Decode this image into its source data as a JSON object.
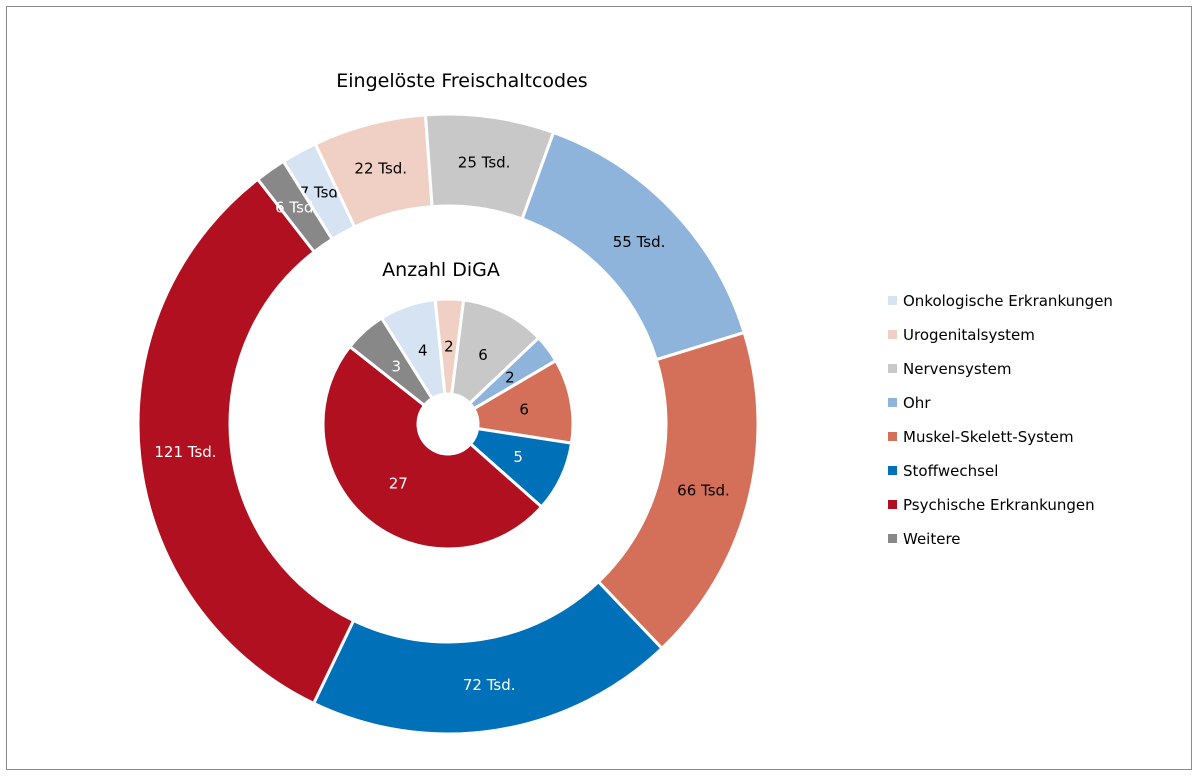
{
  "chart_data": {
    "type": "pie",
    "categories": [
      "Onkologische Erkrankungen",
      "Urogenitalsystem",
      "Nervensystem",
      "Ohr",
      "Muskel-Skelett-System",
      "Stoffwechsel",
      "Psychische Erkrankungen",
      "Weitere"
    ],
    "colors": [
      "#d6e3f2",
      "#f0d0c4",
      "#c8c8c8",
      "#8eb4dc",
      "#d4705a",
      "#0070b8",
      "#b01020",
      "#888888"
    ],
    "label_colors": [
      "#000000",
      "#000000",
      "#000000",
      "#000000",
      "#000000",
      "#ffffff",
      "#ffffff",
      "#ffffff"
    ],
    "series": [
      {
        "name": "Eingelöste Freischaltcodes",
        "values": [
          7,
          22,
          25,
          55,
          66,
          72,
          121,
          6
        ],
        "labels": [
          "7 Tsd.",
          "22 Tsd.",
          "25 Tsd.",
          "55 Tsd.",
          "66 Tsd.",
          "72 Tsd.",
          "121 Tsd.",
          "6 Tsd."
        ]
      },
      {
        "name": "Anzahl DiGA",
        "values": [
          4,
          2,
          6,
          2,
          6,
          5,
          27,
          3
        ],
        "labels": [
          "4",
          "2",
          "6",
          "2",
          "6",
          "5",
          "27",
          "3"
        ]
      }
    ],
    "legend_position": "right"
  }
}
